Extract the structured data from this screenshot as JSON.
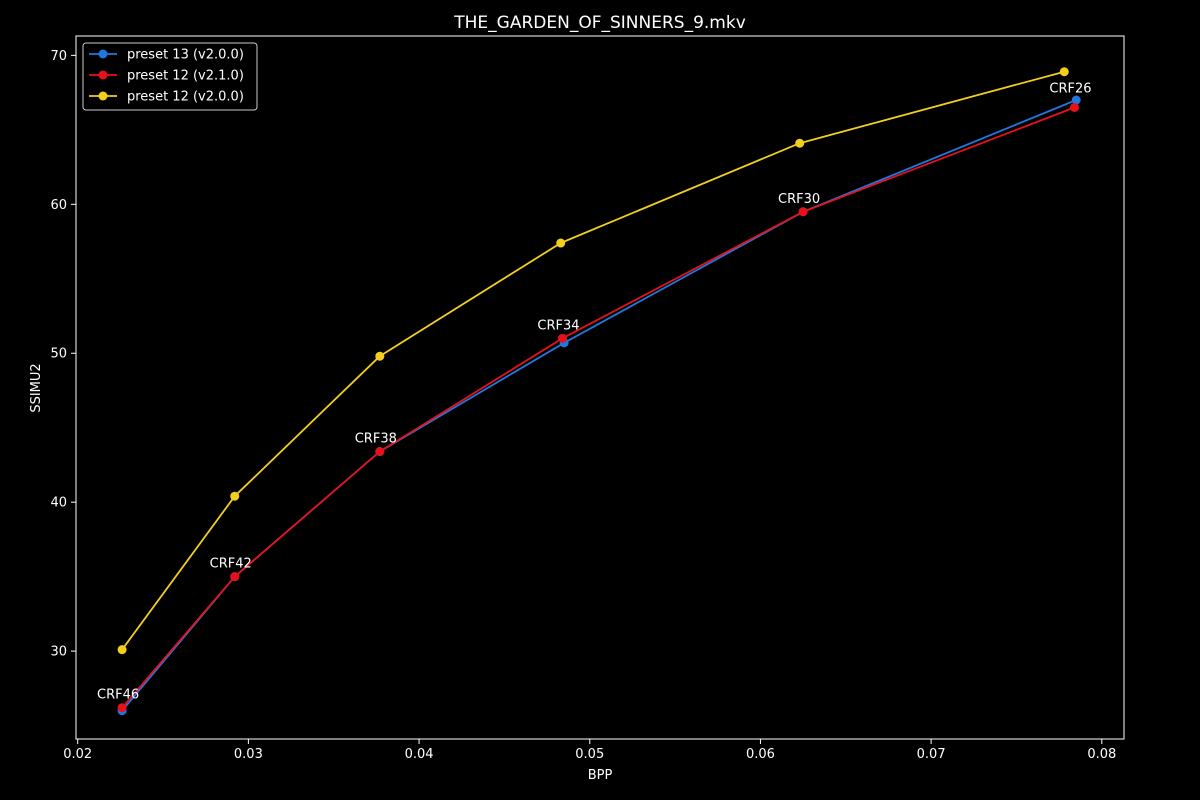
{
  "chart_data": {
    "type": "line",
    "title": "THE_GARDEN_OF_SINNERS_9.mkv",
    "xlabel": "BPP",
    "ylabel": "SSIMU2",
    "xlim": [
      0.0199,
      0.0813
    ],
    "ylim": [
      24.1,
      71.3
    ],
    "xticks": [
      0.02,
      0.03,
      0.04,
      0.05,
      0.06,
      0.07,
      0.08
    ],
    "xtick_labels": [
      "0.02",
      "0.03",
      "0.04",
      "0.05",
      "0.06",
      "0.07",
      "0.08"
    ],
    "yticks": [
      30,
      40,
      50,
      60,
      70
    ],
    "ytick_labels": [
      "30",
      "40",
      "50",
      "60",
      "70"
    ],
    "grid": false,
    "legend_position": "top-left",
    "background": "#000000",
    "series": [
      {
        "name": "preset 13 (v2.0.0)",
        "color": "#1f77e0",
        "x": [
          0.0226,
          0.0292,
          0.0377,
          0.0485,
          0.0625,
          0.0785
        ],
        "y": [
          26.0,
          35.0,
          43.4,
          50.7,
          59.5,
          67.0
        ]
      },
      {
        "name": "preset 12 (v2.1.0)",
        "color": "#e8111a",
        "x": [
          0.0226,
          0.0292,
          0.0377,
          0.0484,
          0.0625,
          0.0784
        ],
        "y": [
          26.2,
          35.0,
          43.4,
          51.0,
          59.5,
          66.5
        ]
      },
      {
        "name": "preset 12 (v2.0.0)",
        "color": "#f2cf1d",
        "x": [
          0.0226,
          0.0292,
          0.0377,
          0.0483,
          0.0623,
          0.0778
        ],
        "y": [
          30.1,
          40.4,
          49.8,
          57.4,
          64.1,
          68.9
        ]
      }
    ],
    "annotations": [
      {
        "text": "CRF46",
        "x": 0.0226,
        "y": 26.2
      },
      {
        "text": "CRF42",
        "x": 0.0292,
        "y": 35.0
      },
      {
        "text": "CRF38",
        "x": 0.0377,
        "y": 43.4
      },
      {
        "text": "CRF34",
        "x": 0.0484,
        "y": 51.0
      },
      {
        "text": "CRF30",
        "x": 0.0625,
        "y": 59.5
      },
      {
        "text": "CRF26",
        "x": 0.0784,
        "y": 66.9
      }
    ]
  }
}
